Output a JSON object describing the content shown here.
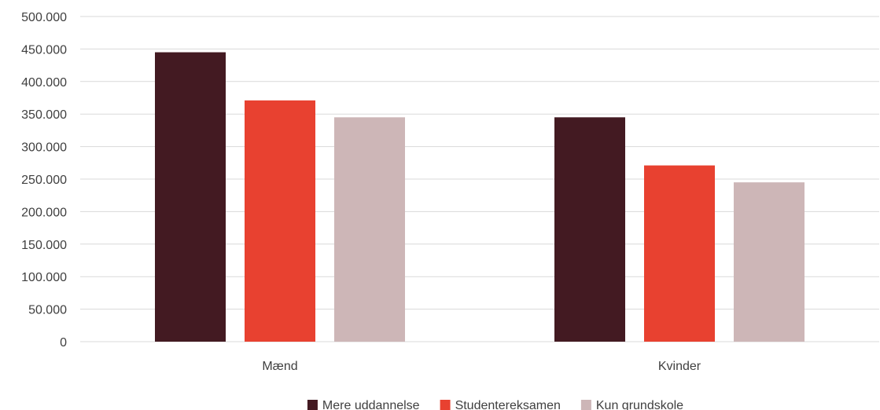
{
  "chart_data": {
    "type": "bar",
    "categories": [
      "Mænd",
      "Kvinder"
    ],
    "series": [
      {
        "name": "Mere uddannelse",
        "color": "#431A22",
        "values": [
          445000,
          345000
        ]
      },
      {
        "name": "Studentereksamen",
        "color": "#E84130",
        "values": [
          371000,
          271000
        ]
      },
      {
        "name": "Kun grundskole",
        "color": "#CDB6B7",
        "values": [
          345000,
          245000
        ]
      }
    ],
    "ylim": [
      0,
      500000
    ],
    "yticks": [
      0,
      50000,
      100000,
      150000,
      200000,
      250000,
      300000,
      350000,
      400000,
      450000,
      500000
    ],
    "ytick_labels": [
      "0",
      "50.000",
      "100.000",
      "150.000",
      "200.000",
      "250.000",
      "300.000",
      "350.000",
      "400.000",
      "450.000",
      "500.000"
    ],
    "title": "",
    "xlabel": "",
    "ylabel": "",
    "grid": true,
    "legend_position": "bottom"
  }
}
